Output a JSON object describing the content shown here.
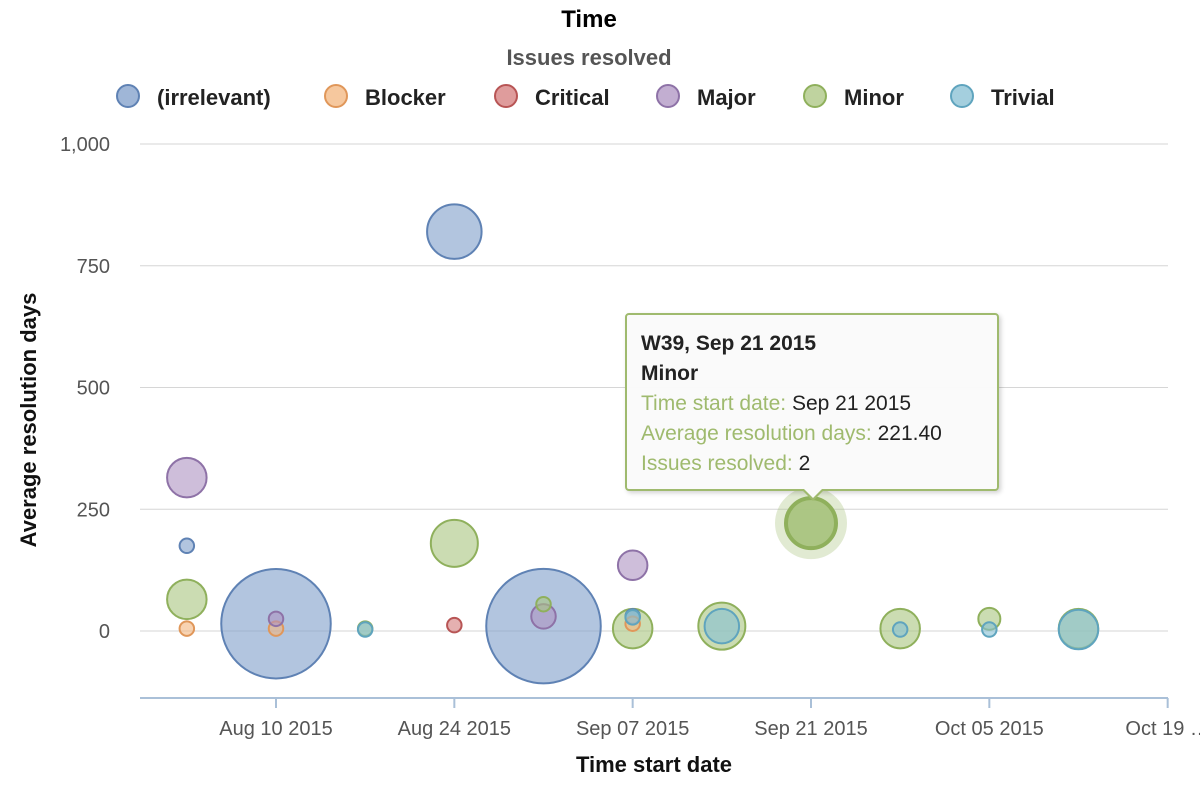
{
  "chart_data": {
    "type": "scatter",
    "title": "Time",
    "subtitle": "Issues resolved",
    "xlabel": "Time start date",
    "ylabel": "Average resolution days",
    "ylim": [
      -130,
      1000
    ],
    "y_ticks": [
      {
        "value": 1000,
        "label": "1,000"
      },
      {
        "value": 750,
        "label": "750"
      },
      {
        "value": 500,
        "label": "500"
      },
      {
        "value": 250,
        "label": "250"
      },
      {
        "value": 0,
        "label": "0"
      }
    ],
    "x_ticks": [
      {
        "date": "2015-08-10",
        "label": "Aug 10 2015"
      },
      {
        "date": "2015-08-24",
        "label": "Aug 24 2015"
      },
      {
        "date": "2015-09-07",
        "label": "Sep 07 2015"
      },
      {
        "date": "2015-09-21",
        "label": "Sep 21 2015"
      },
      {
        "date": "2015-10-05",
        "label": "Oct 05 2015"
      },
      {
        "date": "2015-10-19",
        "label": "Oct 19 …"
      }
    ],
    "grid": true,
    "legend_position": "top-center",
    "series": [
      {
        "name": "(irrelevant)",
        "color": "#7f9ec9",
        "stroke": "#5f82b4",
        "points": [
          {
            "x": "2015-08-03",
            "y": 175,
            "z": 2
          },
          {
            "x": "2015-08-10",
            "y": 15,
            "z": 40
          },
          {
            "x": "2015-08-24",
            "y": 820,
            "z": 18
          },
          {
            "x": "2015-08-31",
            "y": 10,
            "z": 42
          },
          {
            "x": "2015-09-07",
            "y": 30,
            "z": 2
          }
        ]
      },
      {
        "name": "Blocker",
        "color": "#f3b57e",
        "stroke": "#e0975a",
        "points": [
          {
            "x": "2015-08-03",
            "y": 5,
            "z": 2
          },
          {
            "x": "2015-08-10",
            "y": 5,
            "z": 2
          },
          {
            "x": "2015-09-07",
            "y": 15,
            "z": 2
          }
        ]
      },
      {
        "name": "Critical",
        "color": "#d47b7b",
        "stroke": "#b85555",
        "points": [
          {
            "x": "2015-08-24",
            "y": 12,
            "z": 2
          }
        ]
      },
      {
        "name": "Major",
        "color": "#ae93c2",
        "stroke": "#8e72a7",
        "points": [
          {
            "x": "2015-08-03",
            "y": 315,
            "z": 12
          },
          {
            "x": "2015-08-10",
            "y": 25,
            "z": 2
          },
          {
            "x": "2015-08-31",
            "y": 30,
            "z": 6
          },
          {
            "x": "2015-09-07",
            "y": 135,
            "z": 8
          }
        ]
      },
      {
        "name": "Minor",
        "color": "#a9c47f",
        "stroke": "#8fb05c",
        "points": [
          {
            "x": "2015-08-03",
            "y": 65,
            "z": 12
          },
          {
            "x": "2015-08-17",
            "y": 5,
            "z": 2
          },
          {
            "x": "2015-08-24",
            "y": 180,
            "z": 15
          },
          {
            "x": "2015-08-31",
            "y": 55,
            "z": 2
          },
          {
            "x": "2015-09-07",
            "y": 5,
            "z": 12
          },
          {
            "x": "2015-09-14",
            "y": 10,
            "z": 15
          },
          {
            "x": "2015-09-21",
            "y": 221.4,
            "z": 2
          },
          {
            "x": "2015-09-28",
            "y": 5,
            "z": 12
          },
          {
            "x": "2015-10-05",
            "y": 25,
            "z": 5
          },
          {
            "x": "2015-10-12",
            "y": 5,
            "z": 12
          }
        ]
      },
      {
        "name": "Trivial",
        "color": "#86bfd3",
        "stroke": "#5fa4be",
        "points": [
          {
            "x": "2015-08-17",
            "y": 3,
            "z": 2
          },
          {
            "x": "2015-09-07",
            "y": 28,
            "z": 2
          },
          {
            "x": "2015-09-14",
            "y": 10,
            "z": 10
          },
          {
            "x": "2015-09-28",
            "y": 3,
            "z": 2
          },
          {
            "x": "2015-10-05",
            "y": 3,
            "z": 2
          },
          {
            "x": "2015-10-12",
            "y": 3,
            "z": 12
          }
        ]
      }
    ]
  },
  "tooltip": {
    "header": "W39, Sep 21 2015",
    "series": "Minor",
    "rows": [
      {
        "label": "Time start date:",
        "value": "Sep 21 2015"
      },
      {
        "label": "Average resolution days:",
        "value": "221.40"
      },
      {
        "label": "Issues resolved:",
        "value": "2"
      }
    ],
    "border_color": "#9fba6e"
  }
}
